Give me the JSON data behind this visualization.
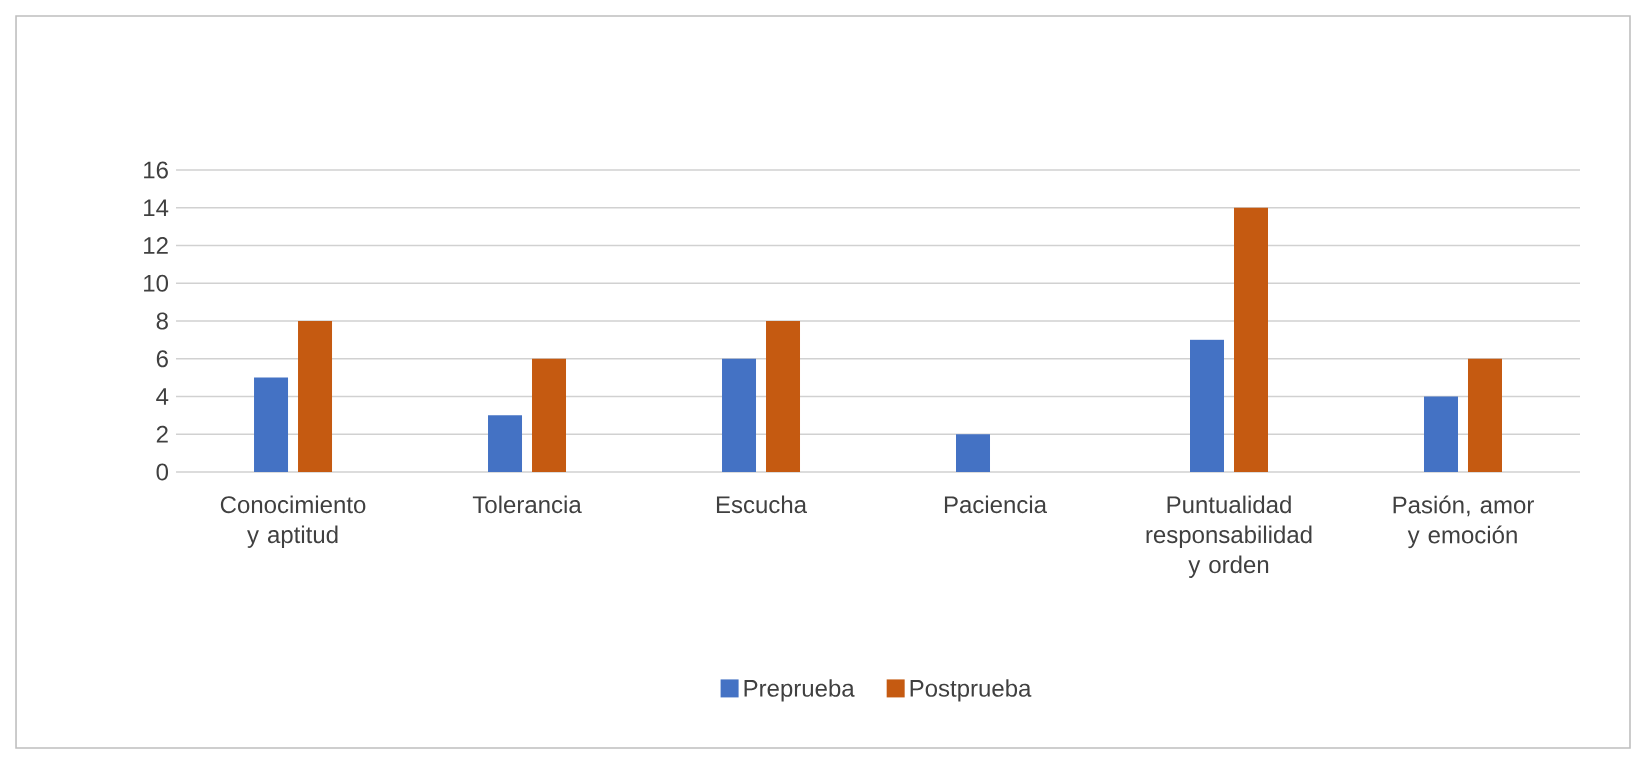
{
  "chart_data": {
    "type": "bar",
    "categories": [
      "Conocimiento y aptitud",
      "Tolerancia",
      "Escucha",
      "Paciencia",
      "Puntualidad responsabilidad y orden",
      "Pasión, amor y emoción"
    ],
    "series": [
      {
        "name": "Preprueba",
        "color": "#4472c4",
        "values": [
          5,
          3,
          6,
          2,
          7,
          4
        ]
      },
      {
        "name": "Postprueba",
        "color": "#c55a11",
        "values": [
          8,
          6,
          8,
          0,
          14,
          6
        ]
      }
    ],
    "ylim": [
      0,
      16
    ],
    "yticks": [
      0,
      2,
      4,
      6,
      8,
      10,
      12,
      14,
      16
    ],
    "grid": "y",
    "legend": "bottom"
  }
}
